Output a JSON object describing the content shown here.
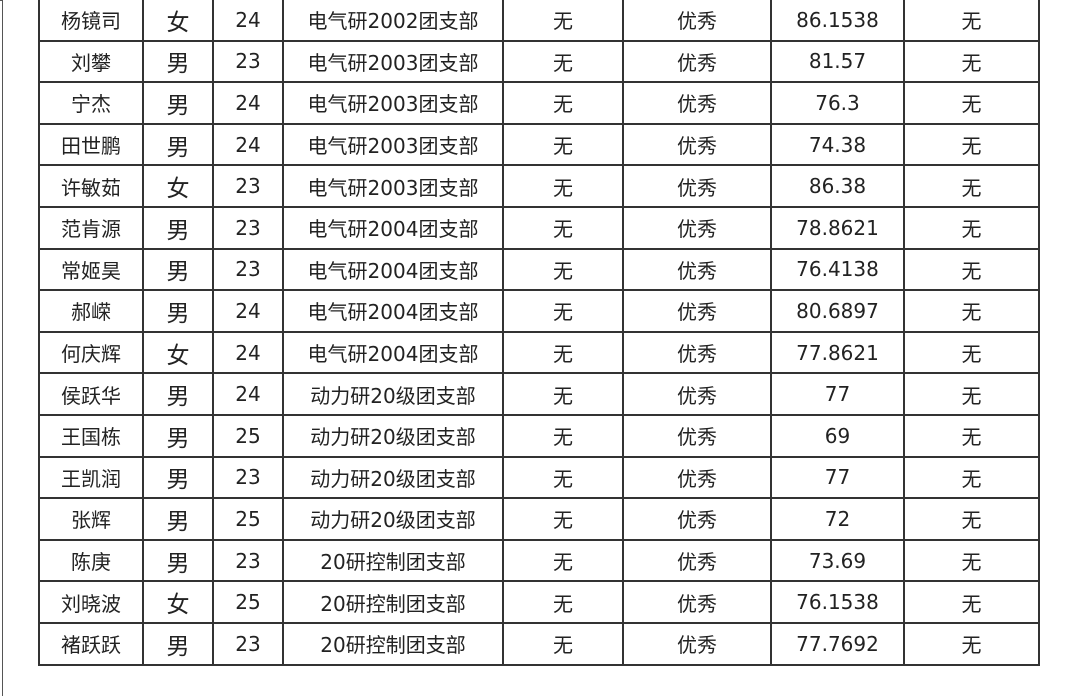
{
  "rows": [
    {
      "name": "杨镜司",
      "sex": "女",
      "age": "24",
      "branch": "电气研2002团支部",
      "c5": "无",
      "rating": "优秀",
      "score": "86.1538",
      "c8": "无"
    },
    {
      "name": "刘攀",
      "sex": "男",
      "age": "23",
      "branch": "电气研2003团支部",
      "c5": "无",
      "rating": "优秀",
      "score": "81.57",
      "c8": "无"
    },
    {
      "name": "宁杰",
      "sex": "男",
      "age": "24",
      "branch": "电气研2003团支部",
      "c5": "无",
      "rating": "优秀",
      "score": "76.3",
      "c8": "无"
    },
    {
      "name": "田世鹏",
      "sex": "男",
      "age": "24",
      "branch": "电气研2003团支部",
      "c5": "无",
      "rating": "优秀",
      "score": "74.38",
      "c8": "无"
    },
    {
      "name": "许敏茹",
      "sex": "女",
      "age": "23",
      "branch": "电气研2003团支部",
      "c5": "无",
      "rating": "优秀",
      "score": "86.38",
      "c8": "无"
    },
    {
      "name": "范肯源",
      "sex": "男",
      "age": "23",
      "branch": "电气研2004团支部",
      "c5": "无",
      "rating": "优秀",
      "score": "78.8621",
      "c8": "无"
    },
    {
      "name": "常姬昊",
      "sex": "男",
      "age": "23",
      "branch": "电气研2004团支部",
      "c5": "无",
      "rating": "优秀",
      "score": "76.4138",
      "c8": "无"
    },
    {
      "name": "郝嵘",
      "sex": "男",
      "age": "24",
      "branch": "电气研2004团支部",
      "c5": "无",
      "rating": "优秀",
      "score": "80.6897",
      "c8": "无"
    },
    {
      "name": "何庆辉",
      "sex": "女",
      "age": "24",
      "branch": "电气研2004团支部",
      "c5": "无",
      "rating": "优秀",
      "score": "77.8621",
      "c8": "无"
    },
    {
      "name": "侯跃华",
      "sex": "男",
      "age": "24",
      "branch": "动力研20级团支部",
      "c5": "无",
      "rating": "优秀",
      "score": "77",
      "c8": "无"
    },
    {
      "name": "王国栋",
      "sex": "男",
      "age": "25",
      "branch": "动力研20级团支部",
      "c5": "无",
      "rating": "优秀",
      "score": "69",
      "c8": "无"
    },
    {
      "name": "王凯润",
      "sex": "男",
      "age": "23",
      "branch": "动力研20级团支部",
      "c5": "无",
      "rating": "优秀",
      "score": "77",
      "c8": "无"
    },
    {
      "name": "张辉",
      "sex": "男",
      "age": "25",
      "branch": "动力研20级团支部",
      "c5": "无",
      "rating": "优秀",
      "score": "72",
      "c8": "无"
    },
    {
      "name": "陈庚",
      "sex": "男",
      "age": "23",
      "branch": "20研控制团支部",
      "c5": "无",
      "rating": "优秀",
      "score": "73.69",
      "c8": "无"
    },
    {
      "name": "刘晓波",
      "sex": "女",
      "age": "25",
      "branch": "20研控制团支部",
      "c5": "无",
      "rating": "优秀",
      "score": "76.1538",
      "c8": "无"
    },
    {
      "name": "褚跃跃",
      "sex": "男",
      "age": "23",
      "branch": "20研控制团支部",
      "c5": "无",
      "rating": "优秀",
      "score": "77.7692",
      "c8": "无"
    }
  ]
}
